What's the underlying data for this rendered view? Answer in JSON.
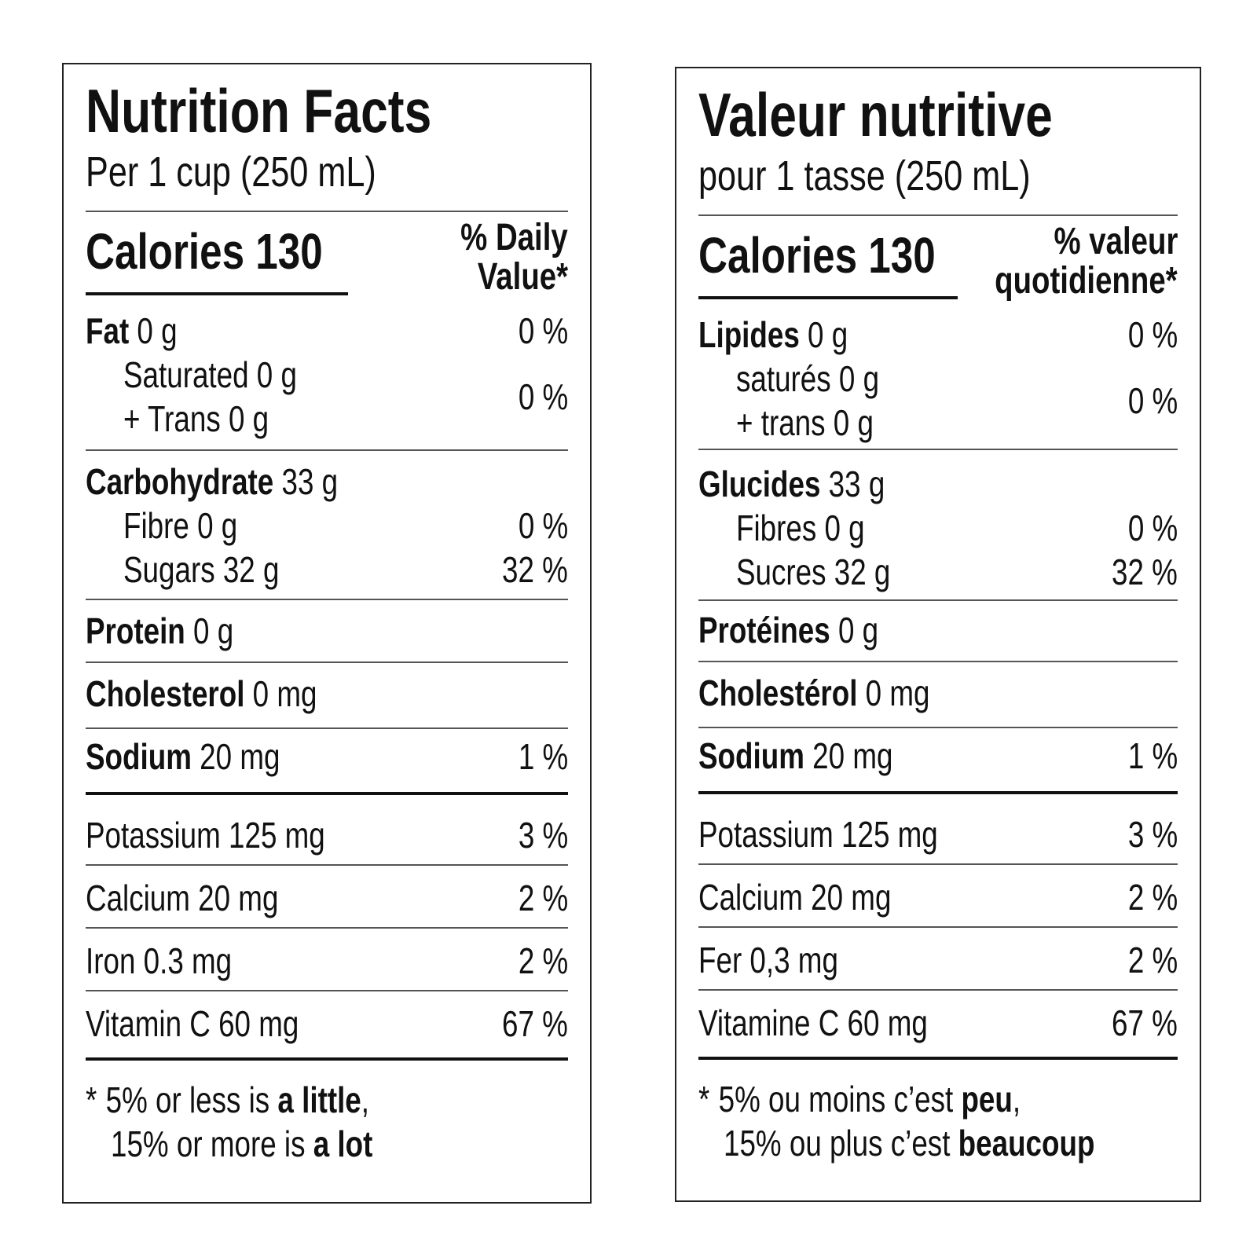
{
  "english": {
    "title": "Nutrition Facts",
    "serving": "Per 1 cup (250 mL)",
    "calories_label": "Calories",
    "calories_value": "130",
    "dv_header_line1": "% Daily",
    "dv_header_line2": "Value*",
    "fat": {
      "label": "Fat",
      "amount": "0 g",
      "dv": "0 %"
    },
    "saturated": {
      "label": "Saturated 0 g"
    },
    "trans": {
      "label": "+ Trans 0 g"
    },
    "sat_trans_dv": "0 %",
    "carbohydrate": {
      "label": "Carbohydrate",
      "amount": "33 g"
    },
    "fibre": {
      "label": "Fibre 0 g",
      "dv": "0 %"
    },
    "sugars": {
      "label": "Sugars 32 g",
      "dv": "32 %"
    },
    "protein": {
      "label": "Protein",
      "amount": "0 g"
    },
    "cholesterol": {
      "label": "Cholesterol",
      "amount": "0 mg"
    },
    "sodium": {
      "label": "Sodium",
      "amount": "20 mg",
      "dv": "1 %"
    },
    "potassium": {
      "label": "Potassium 125 mg",
      "dv": "3 %"
    },
    "calcium": {
      "label": "Calcium 20 mg",
      "dv": "2 %"
    },
    "iron": {
      "label": "Iron 0.3 mg",
      "dv": "2 %"
    },
    "vitamin_c": {
      "label": "Vitamin C 60 mg",
      "dv": "67 %"
    },
    "footnote": {
      "star": "*",
      "line1_pre": "5% or less is ",
      "line1_bold": "a little",
      "line1_post": ",",
      "line2_pre": "15% or more is ",
      "line2_bold": "a lot"
    }
  },
  "french": {
    "title": "Valeur nutritive",
    "serving": "pour 1 tasse (250 mL)",
    "calories_label": "Calories",
    "calories_value": "130",
    "dv_header_line1": "% valeur",
    "dv_header_line2": "quotidienne*",
    "fat": {
      "label": "Lipides",
      "amount": "0 g",
      "dv": "0 %"
    },
    "saturated": {
      "label": "saturés 0 g"
    },
    "trans": {
      "label": "+ trans 0 g"
    },
    "sat_trans_dv": "0 %",
    "carbohydrate": {
      "label": "Glucides",
      "amount": "33 g"
    },
    "fibre": {
      "label": "Fibres 0 g",
      "dv": "0 %"
    },
    "sugars": {
      "label": "Sucres 32 g",
      "dv": "32 %"
    },
    "protein": {
      "label": "Protéines",
      "amount": "0 g"
    },
    "cholesterol": {
      "label": "Cholestérol",
      "amount": "0 mg"
    },
    "sodium": {
      "label": "Sodium",
      "amount": "20 mg",
      "dv": "1 %"
    },
    "potassium": {
      "label": "Potassium 125 mg",
      "dv": "3 %"
    },
    "calcium": {
      "label": "Calcium 20 mg",
      "dv": "2 %"
    },
    "iron": {
      "label": "Fer 0,3 mg",
      "dv": "2 %"
    },
    "vitamin_c": {
      "label": "Vitamine C 60 mg",
      "dv": "67 %"
    },
    "footnote": {
      "star": "*",
      "line1_pre": "5% ou moins c’est ",
      "line1_bold": "peu",
      "line1_post": ",",
      "line2_pre": "15% ou plus c’est ",
      "line2_bold": "beaucoup"
    }
  }
}
